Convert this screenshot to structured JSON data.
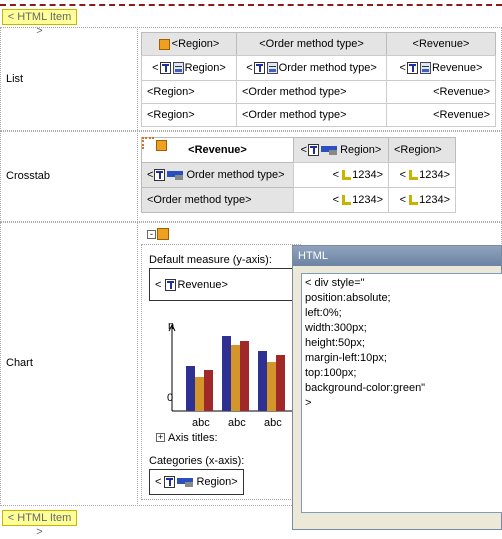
{
  "html_item_top": "< HTML Item >",
  "html_item_bottom": "< HTML Item >",
  "rows": {
    "list": "List",
    "crosstab": "Crosstab",
    "chart": "Chart"
  },
  "list_table": {
    "header": [
      "<Region>",
      "<Order method type>",
      "<Revenue>"
    ],
    "data_row": [
      {
        "open": "<",
        "label": "Region>"
      },
      {
        "open": "<",
        "label": "Order method type>"
      },
      {
        "open": "<",
        "label": "Revenue>"
      }
    ],
    "rows": [
      [
        "<Region>",
        "<Order method type>",
        "<Revenue>"
      ],
      [
        "<Region>",
        "<Order method type>",
        "<Revenue>"
      ]
    ]
  },
  "crosstab": {
    "corner": "<Revenue>",
    "column_header_1": {
      "open": "<",
      "label": "Region>"
    },
    "column_header_2": "<Region>",
    "row_header_1": {
      "open": "<",
      "label": "Order method type>"
    },
    "row_header_2": "<Order method type>",
    "cells": [
      [
        {
          "open": "<",
          "label": "1234>"
        },
        {
          "open": "<",
          "label": "1234>"
        }
      ],
      [
        {
          "open": "<",
          "label": "1234>"
        },
        {
          "open": "<",
          "label": "1234>"
        }
      ]
    ]
  },
  "chart": {
    "default_measure_label": "Default measure (y-axis):",
    "measure": {
      "open": "<",
      "label": "Revenue>"
    },
    "axis_top": "n",
    "axis_bottom": "0",
    "categories": [
      "abc",
      "abc",
      "abc"
    ],
    "axis_titles": "Axis titles:",
    "categories_label": "Categories (x-axis):",
    "category": {
      "open": "<",
      "label": "Region>"
    }
  },
  "html_dialog": {
    "title": "HTML",
    "lines": [
      "< div style=\"",
      "position:absolute;",
      "left:0%;",
      "width:300px;",
      "height:50px;",
      "margin-left:10px;",
      "top:100px;",
      "background-color:green\"",
      ">"
    ]
  }
}
